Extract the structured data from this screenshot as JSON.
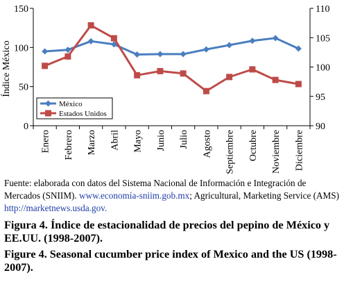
{
  "chart_data": {
    "type": "line",
    "categories": [
      "Enero",
      "Febrero",
      "Marzo",
      "Abril",
      "Mayo",
      "Junio",
      "Julio",
      "Agosto",
      "Septiembre",
      "Octubre",
      "Noviembre",
      "Diciembre"
    ],
    "ylabel": "Índice México",
    "ylim_left": [
      0,
      150
    ],
    "yticks_left": [
      0,
      50,
      100,
      150
    ],
    "ylim_right": [
      90,
      110
    ],
    "yticks_right": [
      90,
      95,
      100,
      105,
      110
    ],
    "grid": false,
    "legend_position": "bottom-left",
    "series": [
      {
        "name": "México",
        "axis": "left",
        "color": "#4a7ebf",
        "marker": "diamond",
        "values": [
          95,
          97,
          108,
          104,
          91,
          91.5,
          91.5,
          97.5,
          103,
          108.5,
          112,
          98.5
        ]
      },
      {
        "name": "Estados Unidos",
        "axis": "right",
        "color": "#be4b48",
        "marker": "square",
        "values": [
          100.2,
          101.8,
          107.1,
          104.9,
          98.6,
          99.3,
          98.9,
          95.9,
          98.3,
          99.6,
          97.8,
          97.1
        ]
      }
    ]
  },
  "source": {
    "text": "Fuente: elaborada con datos del Sistema Nacional de Información e Integración de Mercados (SNIIM). ",
    "link1": "www.economía-sniim.gob.mx",
    "text2": "; Agricultural, Marketing Service (AMS) ",
    "link2": "http://marketnews.usda.gov."
  },
  "captions": {
    "es_num": "Figura 4.",
    "es_text": "Índice de estacionalidad de precios del pepino de México y EE.UU. (1998-2007).",
    "en_num": "Figure 4.",
    "en_text": "Seasonal cucumber price index of Mexico and the US (1998-2007)."
  }
}
